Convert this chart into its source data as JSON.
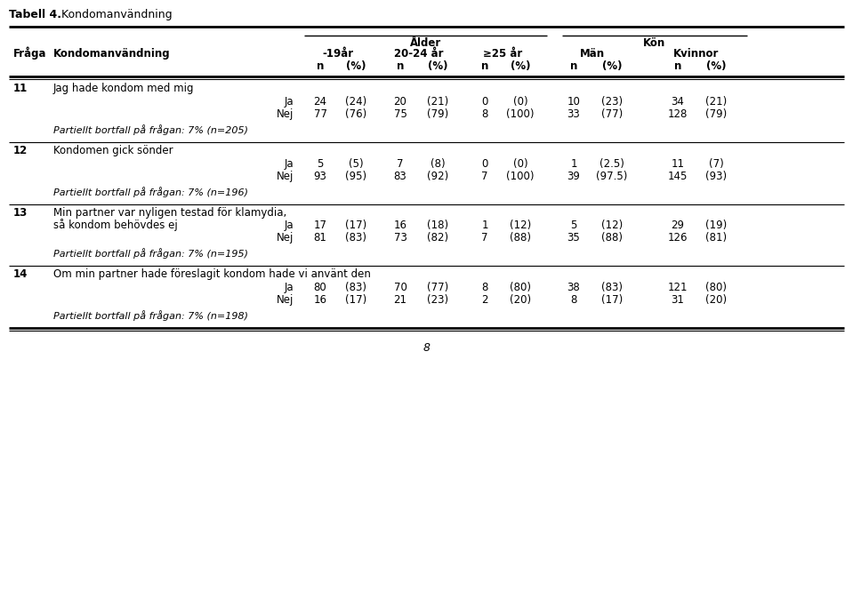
{
  "title_bold": "Tabell 4.",
  "title_rest": "   Kondomanvändning",
  "header_group1": "Ålder",
  "header_group2": "Kön",
  "col_headers": [
    "-19år",
    "20-24 år",
    "≥25 år",
    "Män",
    "Kvinnor"
  ],
  "sub_headers": [
    "n",
    "(%)",
    "n",
    "(%)",
    "n",
    "(%)",
    "n",
    "(%)",
    "n",
    "(%)"
  ],
  "fraga_label": "Fråga",
  "kondoman_label": "Kondomanvändning",
  "rows": [
    {
      "num": "11",
      "question": "Jag hade kondom med mig",
      "ja_row": [
        "Ja",
        "24",
        "(24)",
        "20",
        "(21)",
        "0",
        "(0)",
        "10",
        "(23)",
        "34",
        "(21)"
      ],
      "nej_row": [
        "Nej",
        "77",
        "(76)",
        "75",
        "(79)",
        "8",
        "(100)",
        "33",
        "(77)",
        "128",
        "(79)"
      ],
      "partiellt": "Partiellt bortfall på frågan: 7% (n=205)"
    },
    {
      "num": "12",
      "question": "Kondomen gick sönder",
      "ja_row": [
        "Ja",
        "5",
        "(5)",
        "7",
        "(8)",
        "0",
        "(0)",
        "1",
        "(2.5)",
        "11",
        "(7)"
      ],
      "nej_row": [
        "Nej",
        "93",
        "(95)",
        "83",
        "(92)",
        "7",
        "(100)",
        "39",
        "(97.5)",
        "145",
        "(93)"
      ],
      "partiellt": "Partiellt bortfall på frågan: 7% (n=196)"
    },
    {
      "num": "13",
      "question_line1": "Min partner var nyligen testad för klamydia,",
      "question_line2": "så kondom behövdes ej",
      "ja_row": [
        "Ja",
        "17",
        "(17)",
        "16",
        "(18)",
        "1",
        "(12)",
        "5",
        "(12)",
        "29",
        "(19)"
      ],
      "nej_row": [
        "Nej",
        "81",
        "(83)",
        "73",
        "(82)",
        "7",
        "(88)",
        "35",
        "(88)",
        "126",
        "(81)"
      ],
      "partiellt": "Partiellt bortfall på frågan: 7% (n=195)"
    },
    {
      "num": "14",
      "question": "Om min partner hade föreslagit kondom hade vi använt den",
      "ja_row": [
        "Ja",
        "80",
        "(83)",
        "70",
        "(77)",
        "8",
        "(80)",
        "38",
        "(83)",
        "121",
        "(80)"
      ],
      "nej_row": [
        "Nej",
        "16",
        "(17)",
        "21",
        "(23)",
        "2",
        "(20)",
        "8",
        "(17)",
        "31",
        "(20)"
      ],
      "partiellt": "Partiellt bortfall på frågan: 7% (n=198)"
    }
  ],
  "page_num": "8",
  "fig_width": 9.59,
  "fig_height": 6.65,
  "dpi": 100
}
